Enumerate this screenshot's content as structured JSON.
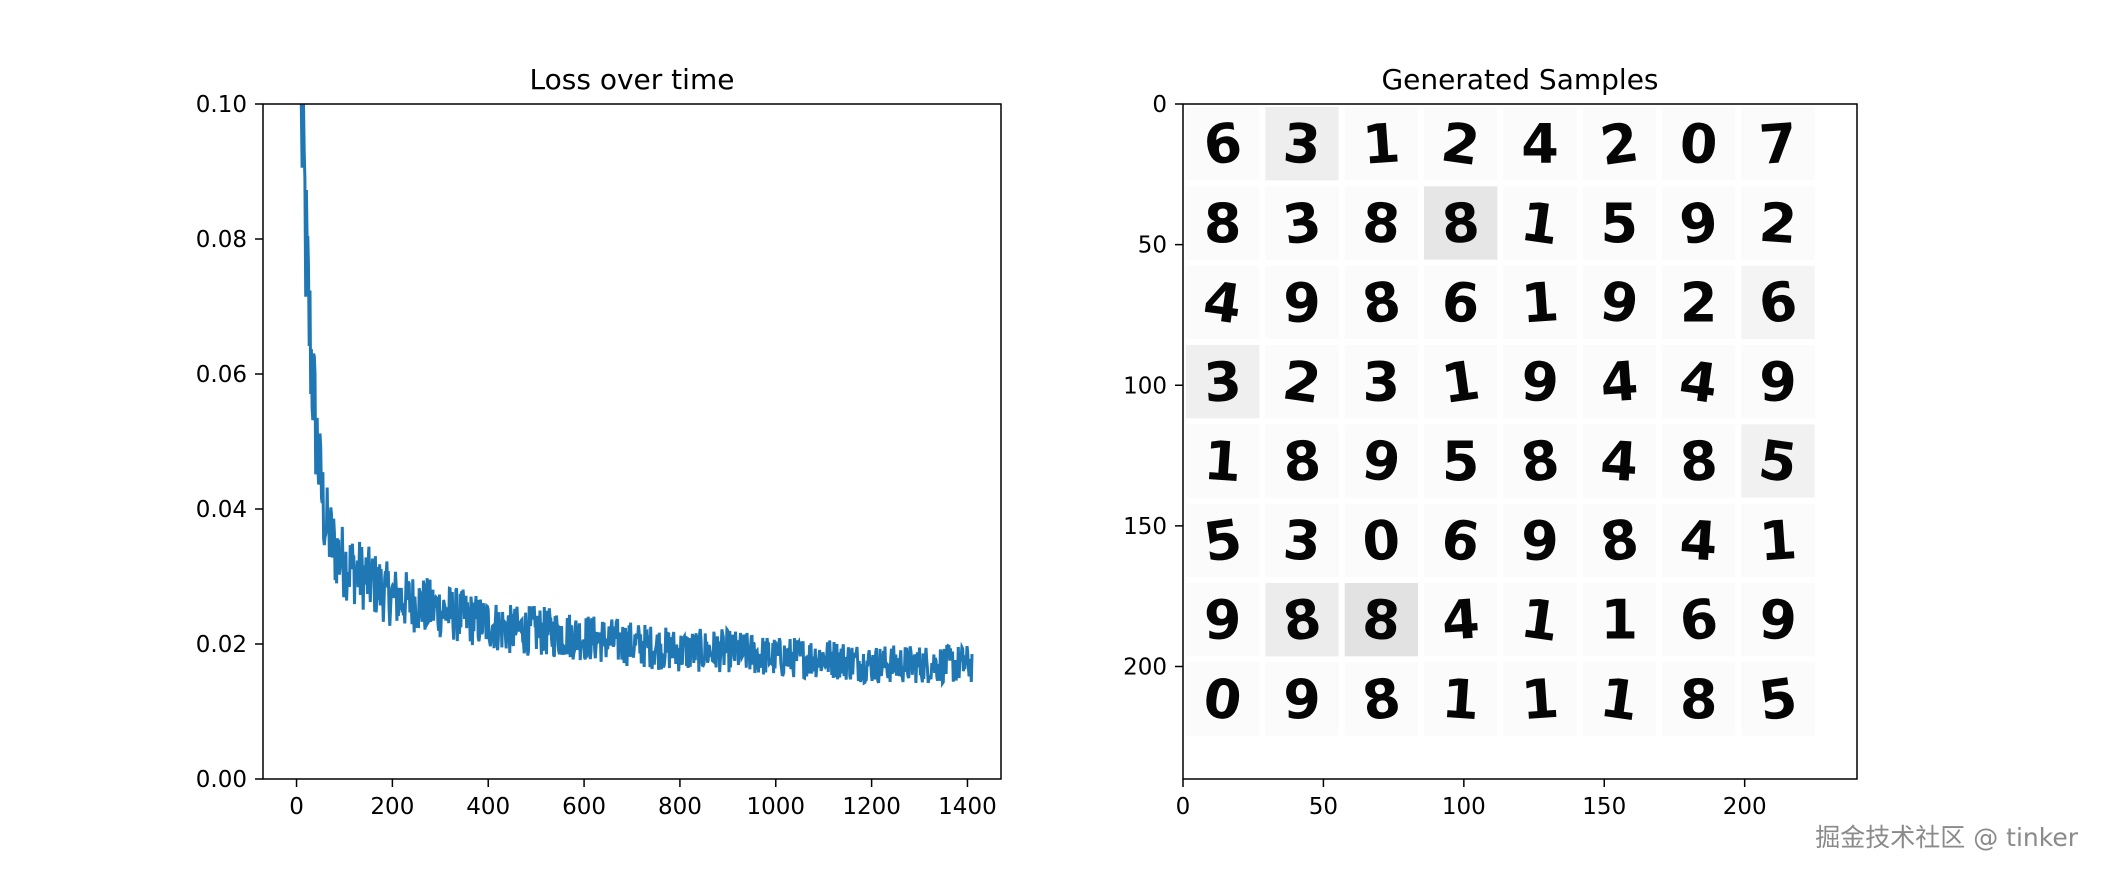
{
  "chart_data": [
    {
      "type": "line",
      "title": "Loss over time",
      "xlabel": "",
      "ylabel": "",
      "xlim": [
        -70,
        1470
      ],
      "ylim": [
        0.0,
        0.1
      ],
      "xticks": [
        "0",
        "200",
        "400",
        "600",
        "800",
        "1000",
        "1200",
        "1400"
      ],
      "yticks": [
        "0.00",
        "0.02",
        "0.04",
        "0.06",
        "0.08",
        "0.10"
      ],
      "grid": false,
      "color": "#1f77b4",
      "series": [
        {
          "x": [
            10,
            15,
            20,
            25,
            30,
            35,
            40,
            45,
            50,
            55,
            60,
            70,
            80,
            90,
            100,
            120,
            140,
            160,
            180,
            200,
            250,
            300,
            350,
            400,
            450,
            500,
            600,
            700,
            800,
            900,
            1000,
            1100,
            1200,
            1300,
            1400,
            1410
          ],
          "y": [
            0.1,
            0.09,
            0.078,
            0.07,
            0.063,
            0.058,
            0.052,
            0.048,
            0.044,
            0.041,
            0.038,
            0.036,
            0.034,
            0.033,
            0.032,
            0.031,
            0.03,
            0.029,
            0.028,
            0.027,
            0.026,
            0.025,
            0.024,
            0.023,
            0.022,
            0.022,
            0.021,
            0.02,
            0.019,
            0.019,
            0.018,
            0.018,
            0.017,
            0.017,
            0.017,
            0.017
          ]
        }
      ]
    },
    {
      "type": "heatmap",
      "title": "Generated Samples",
      "xlim": [
        0,
        240
      ],
      "ylim": [
        240,
        0
      ],
      "xticks": [
        "0",
        "50",
        "100",
        "150",
        "200"
      ],
      "yticks": [
        "0",
        "50",
        "100",
        "150",
        "200"
      ],
      "grid_rows": 8,
      "grid_cols": 8,
      "digits": [
        [
          6,
          3,
          1,
          2,
          4,
          2,
          0,
          7
        ],
        [
          8,
          3,
          8,
          8,
          1,
          5,
          9,
          2
        ],
        [
          4,
          9,
          8,
          6,
          1,
          9,
          2,
          6
        ],
        [
          3,
          2,
          3,
          1,
          9,
          4,
          4,
          9
        ],
        [
          1,
          8,
          9,
          5,
          8,
          4,
          8,
          5
        ],
        [
          5,
          3,
          0,
          6,
          9,
          8,
          4,
          1
        ],
        [
          9,
          8,
          8,
          4,
          1,
          1,
          6,
          9
        ],
        [
          0,
          9,
          8,
          1,
          1,
          1,
          8,
          5
        ]
      ]
    }
  ],
  "watermark": "掘金技术社区 @ tinker"
}
